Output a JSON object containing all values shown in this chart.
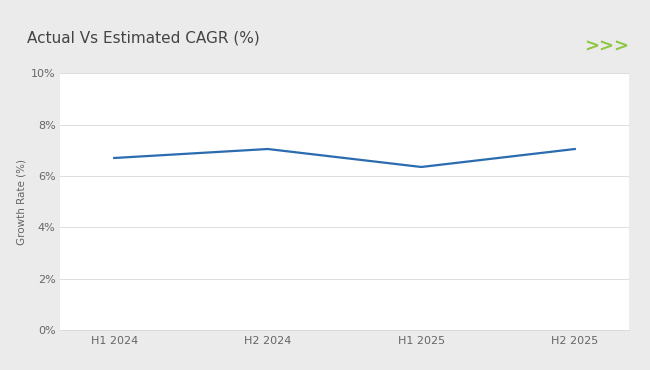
{
  "title": "Actual Vs Estimated CAGR (%)",
  "ylabel": "Growth Rate (%)",
  "x_labels": [
    "H1 2024",
    "H2 2024",
    "H1 2025",
    "H2 2025"
  ],
  "x_values": [
    0,
    1,
    2,
    3
  ],
  "y_values": [
    6.7,
    7.05,
    6.35,
    7.05
  ],
  "ylim": [
    0,
    10
  ],
  "yticks": [
    0,
    2,
    4,
    6,
    8,
    10
  ],
  "ytick_labels": [
    "0%",
    "2%",
    "4%",
    "6%",
    "8%",
    "10%"
  ],
  "line_color": "#2B6CB0",
  "line_width": 1.6,
  "grid_color": "#D8D8D8",
  "bg_color": "#FFFFFF",
  "outer_bg": "#EBEBEB",
  "title_bg": "#FFFFFF",
  "title_fontsize": 11,
  "ylabel_fontsize": 7.5,
  "tick_fontsize": 8,
  "green_line_color": "#8DC63F",
  "arrow_color": "#8DC63F",
  "title_color": "#444444"
}
